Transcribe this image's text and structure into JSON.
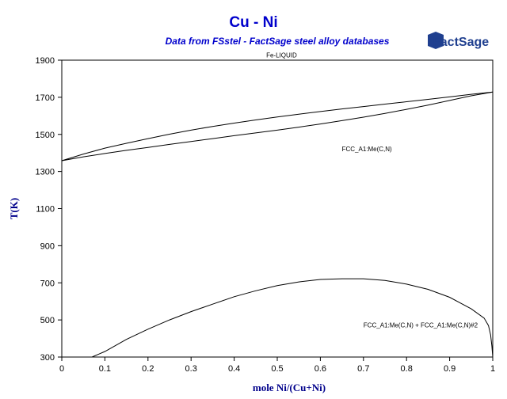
{
  "chart_data": {
    "type": "line",
    "title": "Cu - Ni",
    "subtitle": "Data from FSstel - FactSage steel alloy databases",
    "logo_text": "FactSage",
    "xlabel": "mole Ni/(Cu+Ni)",
    "ylabel": "T(K)",
    "xlim": [
      0,
      1
    ],
    "ylim": [
      300,
      1900
    ],
    "xticks": [
      0,
      0.1,
      0.2,
      0.3,
      0.4,
      0.5,
      0.6,
      0.7,
      0.8,
      0.9,
      1
    ],
    "xtick_labels": [
      "0",
      "0.1",
      "0.2",
      "0.3",
      "0.4",
      "0.5",
      "0.6",
      "0.7",
      "0.8",
      "0.9",
      "1"
    ],
    "yticks": [
      300,
      500,
      700,
      900,
      1100,
      1300,
      1500,
      1700,
      1900
    ],
    "ytick_labels": [
      "300",
      "500",
      "700",
      "900",
      "1100",
      "1300",
      "1500",
      "1700",
      "1900"
    ],
    "grid": false,
    "annotations": [
      {
        "text": "Fe-LIQUID",
        "x": 0.51,
        "y": 1915
      },
      {
        "text": "FCC_A1:Me(C,N)",
        "x": 0.65,
        "y": 1410
      },
      {
        "text": "FCC_A1:Me(C,N) + FCC_A1:Me(C,N)#2",
        "x": 0.7,
        "y": 460
      }
    ],
    "series": [
      {
        "x": [
          0,
          0.05,
          0.1,
          0.15,
          0.2,
          0.25,
          0.3,
          0.35,
          0.4,
          0.45,
          0.5,
          0.55,
          0.6,
          0.65,
          0.7,
          0.75,
          0.8,
          0.85,
          0.9,
          0.95,
          1
        ],
        "values": [
          1358,
          1394,
          1426,
          1452,
          1477,
          1501,
          1523,
          1543,
          1561,
          1578,
          1594,
          1609,
          1623,
          1637,
          1650,
          1663,
          1676,
          1689,
          1702,
          1716,
          1728
        ]
      },
      {
        "x": [
          0,
          0.05,
          0.1,
          0.15,
          0.2,
          0.25,
          0.3,
          0.35,
          0.4,
          0.45,
          0.5,
          0.55,
          0.6,
          0.65,
          0.7,
          0.75,
          0.8,
          0.85,
          0.9,
          0.95,
          1
        ],
        "values": [
          1358,
          1379,
          1397,
          1414,
          1430,
          1446,
          1462,
          1477,
          1493,
          1508,
          1523,
          1539,
          1556,
          1574,
          1593,
          1613,
          1635,
          1658,
          1683,
          1708,
          1728
        ]
      },
      {
        "x": [
          0.07,
          0.1,
          0.15,
          0.2,
          0.25,
          0.3,
          0.35,
          0.4,
          0.45,
          0.5,
          0.55,
          0.6,
          0.65,
          0.7,
          0.75,
          0.8,
          0.85,
          0.9,
          0.95,
          0.98,
          0.99,
          0.995,
          0.998,
          1
        ],
        "values": [
          280,
          330,
          395,
          450,
          500,
          545,
          585,
          625,
          657,
          685,
          705,
          718,
          722,
          722,
          713,
          693,
          665,
          622,
          560,
          510,
          470,
          420,
          360,
          300
        ]
      }
    ]
  }
}
